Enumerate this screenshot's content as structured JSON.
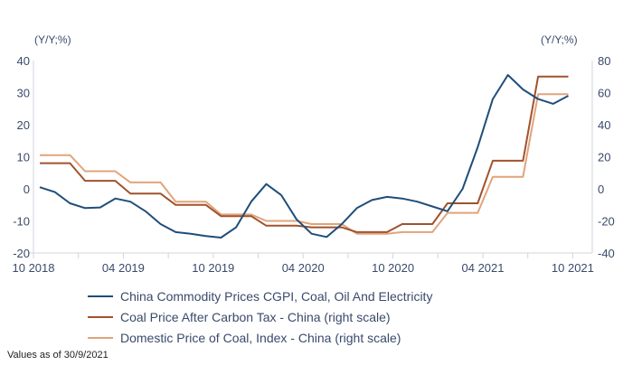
{
  "chart_data": {
    "type": "line",
    "title": "",
    "left_axis": {
      "label": "(Y/Y;%)",
      "range": [
        -20,
        40
      ],
      "ticks": [
        "40",
        "30",
        "20",
        "10",
        "0",
        "-10",
        "-20"
      ],
      "tick_values": [
        40,
        30,
        20,
        10,
        0,
        -10,
        -20
      ]
    },
    "right_axis": {
      "label": "(Y/Y;%)",
      "range": [
        -40,
        80
      ],
      "ticks": [
        "80",
        "60",
        "40",
        "20",
        "0",
        "-20",
        "-40"
      ],
      "tick_values": [
        80,
        60,
        40,
        20,
        0,
        -20,
        -40
      ]
    },
    "x_tick_labels": [
      "10 2018",
      "04 2019",
      "10 2019",
      "04 2020",
      "10 2020",
      "04 2021",
      "10 2021"
    ],
    "x_start": "10 2018",
    "x_frequency": "monthly",
    "grid": false,
    "legend_placement": "bottom",
    "series": [
      {
        "name": "China Commodity Prices CGPI, Coal, Oil And Electricity",
        "axis": "left",
        "color": "#1f4e79",
        "values": [
          0.5,
          -1,
          -4.5,
          -6,
          -5.8,
          -3,
          -4,
          -7,
          -11,
          -13.5,
          -14,
          -14.7,
          -15.2,
          -12,
          -4,
          1.5,
          -2,
          -9.5,
          -14,
          -15,
          -11,
          -6,
          -3.5,
          -2.5,
          -3,
          -4,
          -5.5,
          -7,
          0,
          13,
          28,
          35.5,
          31,
          28,
          26.5,
          29
        ]
      },
      {
        "name": "Coal Price After Carbon Tax - China (right scale)",
        "axis": "right",
        "color": "#a0522d",
        "values": [
          16,
          16,
          16,
          5,
          5,
          5,
          -3,
          -3,
          -3,
          -10,
          -10,
          -10,
          -17,
          -17,
          -17,
          -23,
          -23,
          -23,
          -24,
          -24,
          -24,
          -27,
          -27,
          -27,
          -22,
          -22,
          -22,
          -9,
          -9,
          -9,
          17.5,
          17.5,
          17.5,
          70,
          70,
          70
        ]
      },
      {
        "name": "Domestic Price of Coal, Index - China (right scale)",
        "axis": "right",
        "color": "#e0a47c",
        "values": [
          21,
          21,
          21,
          11,
          11,
          11,
          4,
          4,
          4,
          -8,
          -8,
          -8,
          -16,
          -16,
          -16,
          -20,
          -20,
          -20,
          -22,
          -22,
          -22,
          -28,
          -28,
          -28,
          -27,
          -27,
          -27,
          -15,
          -15,
          -15,
          7.5,
          7.5,
          7.5,
          59,
          59,
          59
        ]
      }
    ],
    "footnote": "Values as of 30/9/2021"
  }
}
